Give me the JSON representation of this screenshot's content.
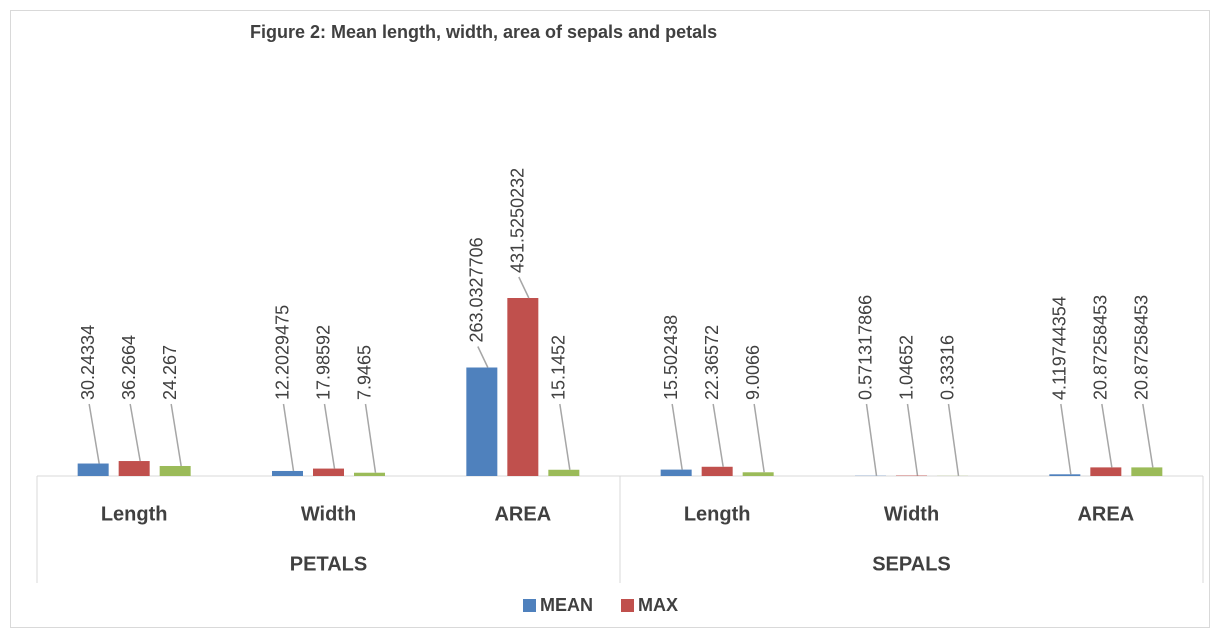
{
  "chart_data": {
    "type": "bar",
    "title": "Figure 2: Mean length, width, area of sepals and petals",
    "categories": [
      "Length",
      "Width",
      "AREA",
      "Length",
      "Width",
      "AREA"
    ],
    "groups": [
      "PETALS",
      "SEPALS"
    ],
    "series": [
      {
        "name": "MEAN",
        "color": "#4f81bd",
        "values": [
          30.24334,
          12.2029475,
          263.0327706,
          15.502438,
          0.571317866,
          4.119744354
        ]
      },
      {
        "name": "MAX",
        "color": "#c0504d",
        "values": [
          36.2664,
          17.98592,
          431.5250232,
          22.36572,
          1.04652,
          20.87258453
        ]
      },
      {
        "color": "#9bbb59",
        "values": [
          24.267,
          7.9465,
          15.1452,
          9.0066,
          0.33316,
          20.87258453
        ]
      }
    ]
  }
}
